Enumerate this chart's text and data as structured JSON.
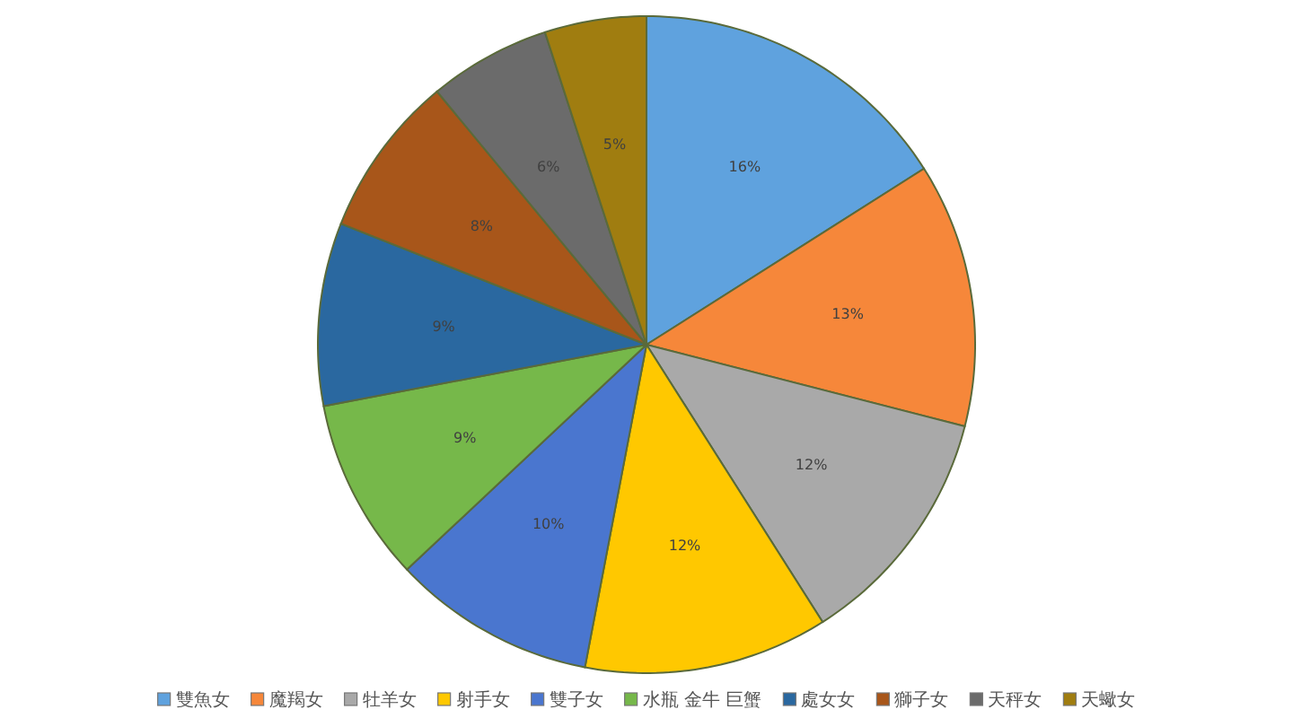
{
  "chart_data": {
    "type": "pie",
    "categories": [
      "雙魚女",
      "魔羯女",
      "牡羊女",
      "射手女",
      "雙子女",
      "水瓶 金牛 巨蟹",
      "處女女",
      "獅子女",
      "天秤女",
      "天蠍女"
    ],
    "values": [
      16,
      13,
      12,
      12,
      10,
      9,
      9,
      8,
      6,
      5
    ],
    "colors": [
      "#5fa2de",
      "#f6873a",
      "#a9a9a9",
      "#ffc800",
      "#4a76cf",
      "#76b84a",
      "#2a68a0",
      "#a8561a",
      "#6b6b6b",
      "#a07d10"
    ],
    "value_labels": [
      "16%",
      "13%",
      "12%",
      "12%",
      "10%",
      "9%",
      "9%",
      "8%",
      "6%",
      "5%"
    ],
    "legend": "bottom"
  }
}
